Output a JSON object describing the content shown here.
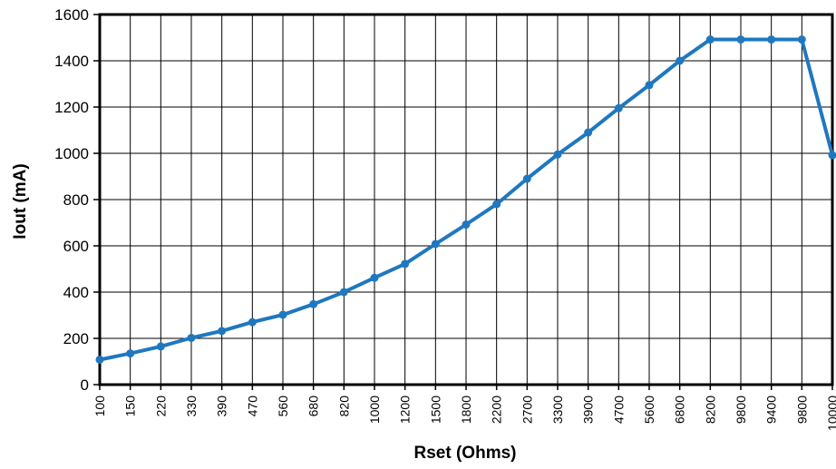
{
  "chart_data": {
    "type": "line",
    "title": "",
    "xlabel": "Rset (Ohms)",
    "ylabel": "Iout (mA)",
    "ylim": [
      0,
      1600
    ],
    "yticks": [
      "0",
      "200",
      "400",
      "600",
      "800",
      "1000",
      "1200",
      "1400",
      "1600"
    ],
    "categories": [
      "100",
      "150",
      "220",
      "330",
      "390",
      "470",
      "560",
      "680",
      "820",
      "1000",
      "1200",
      "1500",
      "1800",
      "2200",
      "2700",
      "3300",
      "3900",
      "4700",
      "5600",
      "6800",
      "8200",
      "9800",
      "9400",
      "9800",
      "10000"
    ],
    "series": [
      {
        "values": [
          108,
          135,
          165,
          202,
          232,
          270,
          302,
          348,
          400,
          462,
          522,
          608,
          692,
          780,
          890,
          995,
          1090,
          1195,
          1295,
          1400,
          1492,
          1492,
          1492,
          1492,
          992
        ]
      }
    ],
    "grid": true,
    "legend": "none",
    "line_color": "#1F78BF",
    "grid_color": "#000000"
  }
}
